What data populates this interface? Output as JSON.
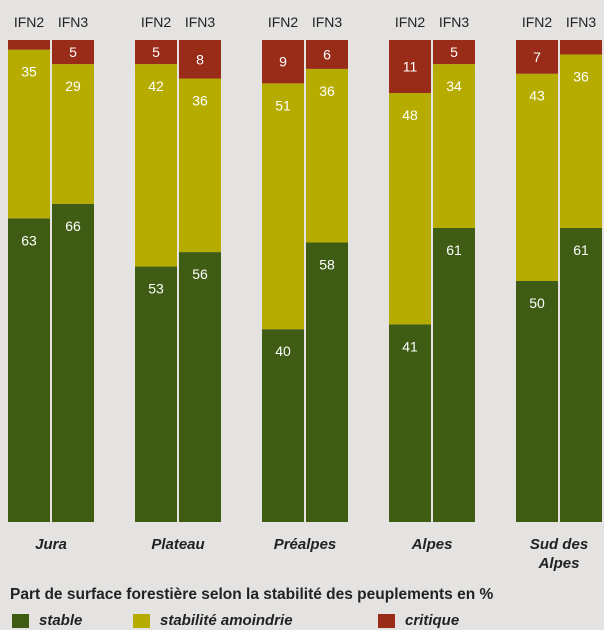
{
  "chart_data": {
    "type": "bar",
    "stacked": true,
    "normalized": true,
    "title": "Part de surface forestière selon la stabilité des peuplements en %",
    "regions": [
      "Jura",
      "Plateau",
      "Préalpes",
      "Alpes",
      "Sud des Alpes"
    ],
    "bars_per_region": [
      "IFN2",
      "IFN3"
    ],
    "series": [
      {
        "name": "stable",
        "color": "#3e5c14"
      },
      {
        "name": "stabilité amoindrie",
        "color": "#b6ac00"
      },
      {
        "name": "critique",
        "color": "#992c18"
      }
    ],
    "values": [
      {
        "region": "Jura",
        "bar": "IFN2",
        "stable": 63,
        "stabilité amoindrie": 35,
        "critique": 2,
        "labels": [
          "63",
          "35",
          ""
        ]
      },
      {
        "region": "Jura",
        "bar": "IFN3",
        "stable": 66,
        "stabilité amoindrie": 29,
        "critique": 5,
        "labels": [
          "66",
          "29",
          "5"
        ]
      },
      {
        "region": "Plateau",
        "bar": "IFN2",
        "stable": 53,
        "stabilité amoindrie": 42,
        "critique": 5,
        "labels": [
          "53",
          "42",
          "5"
        ]
      },
      {
        "region": "Plateau",
        "bar": "IFN3",
        "stable": 56,
        "stabilité amoindrie": 36,
        "critique": 8,
        "labels": [
          "56",
          "36",
          "8"
        ]
      },
      {
        "region": "Préalpes",
        "bar": "IFN2",
        "stable": 40,
        "stabilité amoindrie": 51,
        "critique": 9,
        "labels": [
          "40",
          "51",
          "9"
        ]
      },
      {
        "region": "Préalpes",
        "bar": "IFN3",
        "stable": 58,
        "stabilité amoindrie": 36,
        "critique": 6,
        "labels": [
          "58",
          "36",
          "6"
        ]
      },
      {
        "region": "Alpes",
        "bar": "IFN2",
        "stable": 41,
        "stabilité amoindrie": 48,
        "critique": 11,
        "labels": [
          "41",
          "48",
          "11"
        ]
      },
      {
        "region": "Alpes",
        "bar": "IFN3",
        "stable": 61,
        "stabilité amoindrie": 34,
        "critique": 5,
        "labels": [
          "61",
          "34",
          "5"
        ]
      },
      {
        "region": "Sud des Alpes",
        "bar": "IFN2",
        "stable": 50,
        "stabilité amoindrie": 43,
        "critique": 7,
        "labels": [
          "50",
          "43",
          "7"
        ]
      },
      {
        "region": "Sud des Alpes",
        "bar": "IFN3",
        "stable": 61,
        "stabilité amoindrie": 36,
        "critique": 3,
        "labels": [
          "61",
          "36",
          ""
        ]
      }
    ]
  }
}
